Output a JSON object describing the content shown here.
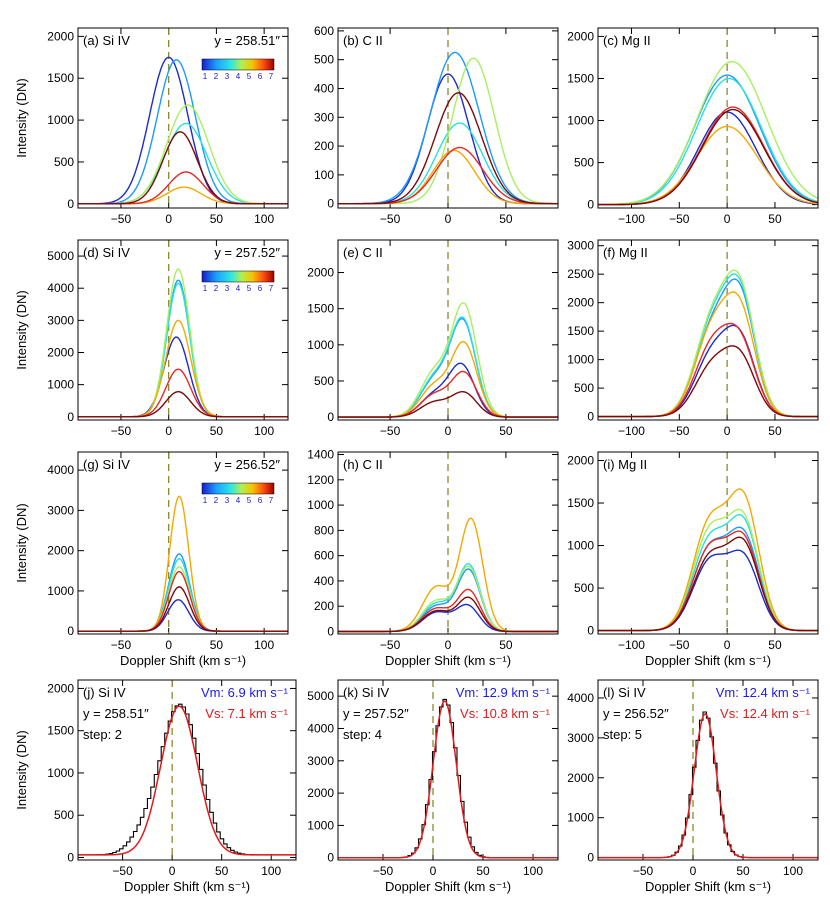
{
  "chart_data": [
    {
      "id": "a",
      "type": "line",
      "panel_label": "(a) Si IV",
      "position_text": "y = 258.51″",
      "colorbar_ticks": [
        "1",
        "2",
        "3",
        "4",
        "5",
        "6",
        "7"
      ],
      "xlabel": "",
      "ylabel": "Intensity (DN)",
      "xlim": [
        -95,
        125
      ],
      "ylim": [
        -50,
        2100
      ],
      "xticks": [
        -50,
        0,
        50,
        100
      ],
      "yticks": [
        0,
        500,
        1000,
        1500,
        2000
      ],
      "reference_line_x": 0,
      "series": [
        {
          "step": 1,
          "color": "#1e2acc",
          "center": 0,
          "sigma": 20,
          "peak": 1750
        },
        {
          "step": 2,
          "color": "#1a9bff",
          "center": 8,
          "sigma": 20,
          "peak": 1720
        },
        {
          "step": 3,
          "color": "#28e0e0",
          "center": 18,
          "sigma": 22,
          "peak": 960
        },
        {
          "step": 4,
          "color": "#a8f060",
          "center": 20,
          "sigma": 22,
          "peak": 1180
        },
        {
          "step": 5,
          "color": "#f5a800",
          "center": 16,
          "sigma": 18,
          "peak": 200
        },
        {
          "step": 6,
          "color": "#e62828",
          "center": 18,
          "sigma": 18,
          "peak": 380
        },
        {
          "step": 7,
          "color": "#7a0a0a",
          "center": 12,
          "sigma": 18,
          "peak": 860
        }
      ]
    },
    {
      "id": "b",
      "type": "line",
      "panel_label": "(b) C II",
      "xlabel": "",
      "ylabel": "",
      "xlim": [
        -95,
        95
      ],
      "ylim": [
        -15,
        610
      ],
      "xticks": [
        -50,
        0,
        50
      ],
      "yticks": [
        0,
        100,
        200,
        300,
        400,
        500,
        600
      ],
      "reference_line_x": 0,
      "series": [
        {
          "step": 1,
          "color": "#1e2acc",
          "center": 0,
          "sigma": 18,
          "peak": 450
        },
        {
          "step": 2,
          "color": "#1a9bff",
          "center": 6,
          "sigma": 21,
          "peak": 525
        },
        {
          "step": 3,
          "color": "#28e0e0",
          "center": 10,
          "sigma": 20,
          "peak": 280
        },
        {
          "step": 4,
          "color": "#a8f060",
          "center": 22,
          "sigma": 18,
          "peak": 505
        },
        {
          "step": 5,
          "color": "#f5a800",
          "center": 5,
          "sigma": 18,
          "peak": 185
        },
        {
          "step": 6,
          "color": "#e62828",
          "center": 10,
          "sigma": 20,
          "peak": 195
        },
        {
          "step": 7,
          "color": "#7a0a0a",
          "center": 9,
          "sigma": 20,
          "peak": 385
        }
      ]
    },
    {
      "id": "c",
      "type": "line",
      "panel_label": "(c) Mg II",
      "xlabel": "",
      "ylabel": "",
      "xlim": [
        -135,
        95
      ],
      "ylim": [
        -40,
        2100
      ],
      "xticks": [
        -100,
        -50,
        0,
        50
      ],
      "yticks": [
        0,
        500,
        1000,
        1500,
        2000
      ],
      "reference_line_x": 0,
      "series": [
        {
          "step": 1,
          "color": "#1e2acc",
          "center": 0,
          "sigma": 30,
          "peak": 1100
        },
        {
          "step": 2,
          "color": "#1a9bff",
          "center": 0,
          "sigma": 34,
          "peak": 1540
        },
        {
          "step": 3,
          "color": "#28e0e0",
          "center": 2,
          "sigma": 34,
          "peak": 1500
        },
        {
          "step": 4,
          "color": "#a8f060",
          "center": 5,
          "sigma": 36,
          "peak": 1700
        },
        {
          "step": 5,
          "color": "#f5a800",
          "center": 0,
          "sigma": 32,
          "peak": 930
        },
        {
          "step": 6,
          "color": "#e62828",
          "center": 6,
          "sigma": 32,
          "peak": 1160
        },
        {
          "step": 7,
          "color": "#7a0a0a",
          "center": 6,
          "sigma": 32,
          "peak": 1130
        }
      ]
    },
    {
      "id": "d",
      "type": "line",
      "panel_label": "(d) Si IV",
      "position_text": "y = 257.52″",
      "colorbar_ticks": [
        "1",
        "2",
        "3",
        "4",
        "5",
        "6",
        "7"
      ],
      "xlabel": "",
      "ylabel": "Intensity (DN)",
      "xlim": [
        -95,
        125
      ],
      "ylim": [
        -100,
        5500
      ],
      "xticks": [
        -50,
        0,
        50,
        100
      ],
      "yticks": [
        0,
        1000,
        2000,
        3000,
        4000,
        5000
      ],
      "reference_line_x": 0,
      "series": [
        {
          "step": 1,
          "color": "#1e2acc",
          "center": 8,
          "sigma": 13,
          "peak": 2480
        },
        {
          "step": 2,
          "color": "#1a9bff",
          "center": 10,
          "sigma": 12,
          "peak": 4250
        },
        {
          "step": 3,
          "color": "#28e0e0",
          "center": 10,
          "sigma": 12,
          "peak": 4150
        },
        {
          "step": 4,
          "color": "#a8f060",
          "center": 10,
          "sigma": 12,
          "peak": 4600
        },
        {
          "step": 5,
          "color": "#f5a800",
          "center": 10,
          "sigma": 13,
          "peak": 3000
        },
        {
          "step": 6,
          "color": "#e62828",
          "center": 10,
          "sigma": 13,
          "peak": 1480
        },
        {
          "step": 7,
          "color": "#7a0a0a",
          "center": 10,
          "sigma": 13,
          "peak": 780
        }
      ]
    },
    {
      "id": "e",
      "type": "line",
      "panel_label": "(e) C II",
      "xlabel": "",
      "ylabel": "",
      "xlim": [
        -95,
        95
      ],
      "ylim": [
        -40,
        2450
      ],
      "xticks": [
        -50,
        0,
        50
      ],
      "yticks": [
        0,
        500,
        1000,
        1500,
        2000
      ],
      "reference_line_x": 0,
      "series": [
        {
          "step": 1,
          "color": "#1e2acc",
          "center": 12,
          "sigma": 11,
          "peak": 700,
          "center2": -12,
          "sigma2": 12,
          "peak2": 300
        },
        {
          "step": 2,
          "color": "#1a9bff",
          "center": 13,
          "sigma": 11,
          "peak": 1300,
          "center2": -12,
          "sigma2": 12,
          "peak2": 500
        },
        {
          "step": 3,
          "color": "#28e0e0",
          "center": 13,
          "sigma": 11,
          "peak": 1320,
          "center2": -12,
          "sigma2": 12,
          "peak2": 520
        },
        {
          "step": 4,
          "color": "#a8f060",
          "center": 14,
          "sigma": 11,
          "peak": 1520,
          "center2": -12,
          "sigma2": 12,
          "peak2": 600
        },
        {
          "step": 5,
          "color": "#f5a800",
          "center": 14,
          "sigma": 11,
          "peak": 1000,
          "center2": -12,
          "sigma2": 12,
          "peak2": 420
        },
        {
          "step": 6,
          "color": "#e62828",
          "center": 14,
          "sigma": 11,
          "peak": 600,
          "center2": -12,
          "sigma2": 12,
          "peak2": 300
        },
        {
          "step": 7,
          "color": "#7a0a0a",
          "center": 14,
          "sigma": 11,
          "peak": 330,
          "center2": -12,
          "sigma2": 12,
          "peak2": 200
        }
      ]
    },
    {
      "id": "f",
      "type": "line",
      "panel_label": "(f) Mg II",
      "xlabel": "",
      "ylabel": "",
      "xlim": [
        -135,
        95
      ],
      "ylim": [
        -60,
        3100
      ],
      "xticks": [
        -100,
        -50,
        0,
        50
      ],
      "yticks": [
        0,
        500,
        1000,
        1500,
        2000,
        2500,
        3000
      ],
      "reference_line_x": 0,
      "series": [
        {
          "step": 1,
          "color": "#1e2acc",
          "center": 14,
          "sigma": 16,
          "peak": 1250,
          "center2": -16,
          "sigma2": 18,
          "peak2": 1050
        },
        {
          "step": 2,
          "color": "#1a9bff",
          "center": 14,
          "sigma": 16,
          "peak": 1950,
          "center2": -16,
          "sigma2": 18,
          "peak2": 1450
        },
        {
          "step": 3,
          "color": "#28e0e0",
          "center": 14,
          "sigma": 16,
          "peak": 2000,
          "center2": -16,
          "sigma2": 18,
          "peak2": 1550
        },
        {
          "step": 4,
          "color": "#a8f060",
          "center": 14,
          "sigma": 16,
          "peak": 2050,
          "center2": -16,
          "sigma2": 18,
          "peak2": 1600
        },
        {
          "step": 5,
          "color": "#f5a800",
          "center": 14,
          "sigma": 16,
          "peak": 1700,
          "center2": -16,
          "sigma2": 18,
          "peak2": 1450
        },
        {
          "step": 6,
          "color": "#e62828",
          "center": 14,
          "sigma": 16,
          "peak": 1200,
          "center2": -16,
          "sigma2": 18,
          "peak2": 1200
        },
        {
          "step": 7,
          "color": "#7a0a0a",
          "center": 14,
          "sigma": 16,
          "peak": 950,
          "center2": -16,
          "sigma2": 18,
          "peak2": 850
        }
      ]
    },
    {
      "id": "g",
      "type": "line",
      "panel_label": "(g) Si IV",
      "position_text": "y = 256.52″",
      "colorbar_ticks": [
        "1",
        "2",
        "3",
        "4",
        "5",
        "6",
        "7"
      ],
      "xlabel": "Doppler Shift (km s⁻¹)",
      "ylabel": "Intensity (DN)",
      "xlim": [
        -95,
        125
      ],
      "ylim": [
        -70,
        4450
      ],
      "xticks": [
        -50,
        0,
        50,
        100
      ],
      "yticks": [
        0,
        1000,
        2000,
        3000,
        4000
      ],
      "reference_line_x": 0,
      "series": [
        {
          "step": 1,
          "color": "#1e2acc",
          "center": 10,
          "sigma": 11,
          "peak": 780
        },
        {
          "step": 2,
          "color": "#1a9bff",
          "center": 11,
          "sigma": 11,
          "peak": 1920
        },
        {
          "step": 3,
          "color": "#28e0e0",
          "center": 11,
          "sigma": 11,
          "peak": 1800
        },
        {
          "step": 4,
          "color": "#a8f060",
          "center": 11,
          "sigma": 11,
          "peak": 1600
        },
        {
          "step": 5,
          "color": "#f5a800",
          "center": 11,
          "sigma": 10,
          "peak": 3350
        },
        {
          "step": 6,
          "color": "#e62828",
          "center": 11,
          "sigma": 11,
          "peak": 1480
        },
        {
          "step": 7,
          "color": "#7a0a0a",
          "center": 11,
          "sigma": 11,
          "peak": 1100
        }
      ]
    },
    {
      "id": "h",
      "type": "line",
      "panel_label": "(h) C II",
      "xlabel": "Doppler Shift (km s⁻¹)",
      "ylabel": "",
      "xlim": [
        -95,
        95
      ],
      "ylim": [
        -20,
        1420
      ],
      "xticks": [
        -50,
        0,
        50
      ],
      "yticks": [
        0,
        200,
        400,
        600,
        800,
        1000,
        1200,
        1400
      ],
      "reference_line_x": 0,
      "series": [
        {
          "step": 1,
          "color": "#1e2acc",
          "center": 17,
          "sigma": 10,
          "peak": 200,
          "center2": -10,
          "sigma2": 12,
          "peak2": 150
        },
        {
          "step": 2,
          "color": "#1a9bff",
          "center": 18,
          "sigma": 10,
          "peak": 480,
          "center2": -10,
          "sigma2": 12,
          "peak2": 200
        },
        {
          "step": 3,
          "color": "#28e0e0",
          "center": 18,
          "sigma": 10,
          "peak": 520,
          "center2": -10,
          "sigma2": 12,
          "peak2": 220
        },
        {
          "step": 4,
          "color": "#a8f060",
          "center": 18,
          "sigma": 10,
          "peak": 500,
          "center2": -10,
          "sigma2": 12,
          "peak2": 240
        },
        {
          "step": 5,
          "color": "#f5a800",
          "center": 20,
          "sigma": 10,
          "peak": 880,
          "center2": -10,
          "sigma2": 12,
          "peak2": 350
        },
        {
          "step": 6,
          "color": "#e62828",
          "center": 18,
          "sigma": 10,
          "peak": 320,
          "center2": -10,
          "sigma2": 12,
          "peak2": 180
        },
        {
          "step": 7,
          "color": "#7a0a0a",
          "center": 18,
          "sigma": 10,
          "peak": 260,
          "center2": -10,
          "sigma2": 12,
          "peak2": 160
        }
      ]
    },
    {
      "id": "i",
      "type": "line",
      "panel_label": "(i) Mg II",
      "xlabel": "Doppler Shift (km s⁻¹)",
      "ylabel": "",
      "xlim": [
        -135,
        95
      ],
      "ylim": [
        -40,
        2100
      ],
      "xticks": [
        -100,
        -50,
        0,
        50
      ],
      "yticks": [
        0,
        500,
        1000,
        1500,
        2000
      ],
      "reference_line_x": 0,
      "series": [
        {
          "step": 1,
          "color": "#1e2acc",
          "center": 18,
          "sigma": 16,
          "peak": 800,
          "center2": -18,
          "sigma2": 18,
          "peak2": 800
        },
        {
          "step": 2,
          "color": "#1a9bff",
          "center": 18,
          "sigma": 16,
          "peak": 1050,
          "center2": -18,
          "sigma2": 18,
          "peak2": 950
        },
        {
          "step": 3,
          "color": "#28e0e0",
          "center": 18,
          "sigma": 16,
          "peak": 1180,
          "center2": -18,
          "sigma2": 18,
          "peak2": 1050
        },
        {
          "step": 4,
          "color": "#a8f060",
          "center": 18,
          "sigma": 16,
          "peak": 1220,
          "center2": -18,
          "sigma2": 18,
          "peak2": 1150
        },
        {
          "step": 5,
          "color": "#f5a800",
          "center": 18,
          "sigma": 16,
          "peak": 1450,
          "center2": -18,
          "sigma2": 18,
          "peak2": 1250
        },
        {
          "step": 6,
          "color": "#e62828",
          "center": 18,
          "sigma": 16,
          "peak": 1000,
          "center2": -18,
          "sigma2": 18,
          "peak2": 950
        },
        {
          "step": 7,
          "color": "#7a0a0a",
          "center": 18,
          "sigma": 16,
          "peak": 950,
          "center2": -18,
          "sigma2": 18,
          "peak2": 850
        }
      ]
    },
    {
      "id": "j",
      "type": "line",
      "panel_label": "(j) Si IV",
      "position_text": "y =  258.51″",
      "step_text": "step: 2",
      "vm_text": "Vm:  6.9 km s⁻¹",
      "vs_text": "Vs:  7.1 km s⁻¹",
      "xlabel": "Doppler Shift (km s⁻¹)",
      "ylabel": "Intensity (DN)",
      "xlim": [
        -95,
        125
      ],
      "ylim": [
        -30,
        2100
      ],
      "xticks": [
        -50,
        0,
        50,
        100
      ],
      "yticks": [
        0,
        500,
        1000,
        1500,
        2000
      ],
      "reference_line_x": 0,
      "observed": {
        "color": "#000000",
        "center": 8,
        "sigma": 20,
        "peak": 1780,
        "wing_excess": 160,
        "bin": 3.5
      },
      "fit": {
        "color": "#e01a1a",
        "center": 7.1,
        "sigma": 18.5,
        "peak": 1760,
        "background": 30
      }
    },
    {
      "id": "k",
      "type": "line",
      "panel_label": "(k) Si IV",
      "position_text": "y =  257.52″",
      "step_text": "step: 4",
      "vm_text": "Vm: 12.9 km s⁻¹",
      "vs_text": "Vs: 10.8 km s⁻¹",
      "xlabel": "Doppler Shift (km s⁻¹)",
      "ylabel": "",
      "xlim": [
        -95,
        125
      ],
      "ylim": [
        -70,
        5500
      ],
      "xticks": [
        -50,
        0,
        50,
        100
      ],
      "yticks": [
        0,
        1000,
        2000,
        3000,
        4000,
        5000
      ],
      "reference_line_x": 0,
      "observed": {
        "color": "#000000",
        "center": 12,
        "sigma": 12,
        "peak": 4900,
        "wing_excess": 0,
        "bin": 3.5
      },
      "fit": {
        "color": "#e01a1a",
        "center": 11.7,
        "sigma": 11.5,
        "peak": 4850,
        "background": 0
      }
    },
    {
      "id": "l",
      "type": "line",
      "panel_label": "(l) Si IV",
      "position_text": "y =  256.52″",
      "step_text": "step: 5",
      "vm_text": "Vm: 12.4 km s⁻¹",
      "vs_text": "Vs: 12.4 km s⁻¹",
      "xlabel": "Doppler Shift (km s⁻¹)",
      "ylabel": "",
      "xlim": [
        -95,
        125
      ],
      "ylim": [
        -60,
        4450
      ],
      "xticks": [
        -50,
        0,
        50,
        100
      ],
      "yticks": [
        0,
        1000,
        2000,
        3000,
        4000
      ],
      "reference_line_x": 0,
      "observed": {
        "color": "#000000",
        "center": 12,
        "sigma": 11,
        "peak": 3650,
        "wing_excess": 0,
        "bin": 3.5
      },
      "fit": {
        "color": "#e01a1a",
        "center": 12.2,
        "sigma": 11,
        "peak": 3600,
        "background": 0
      }
    }
  ]
}
